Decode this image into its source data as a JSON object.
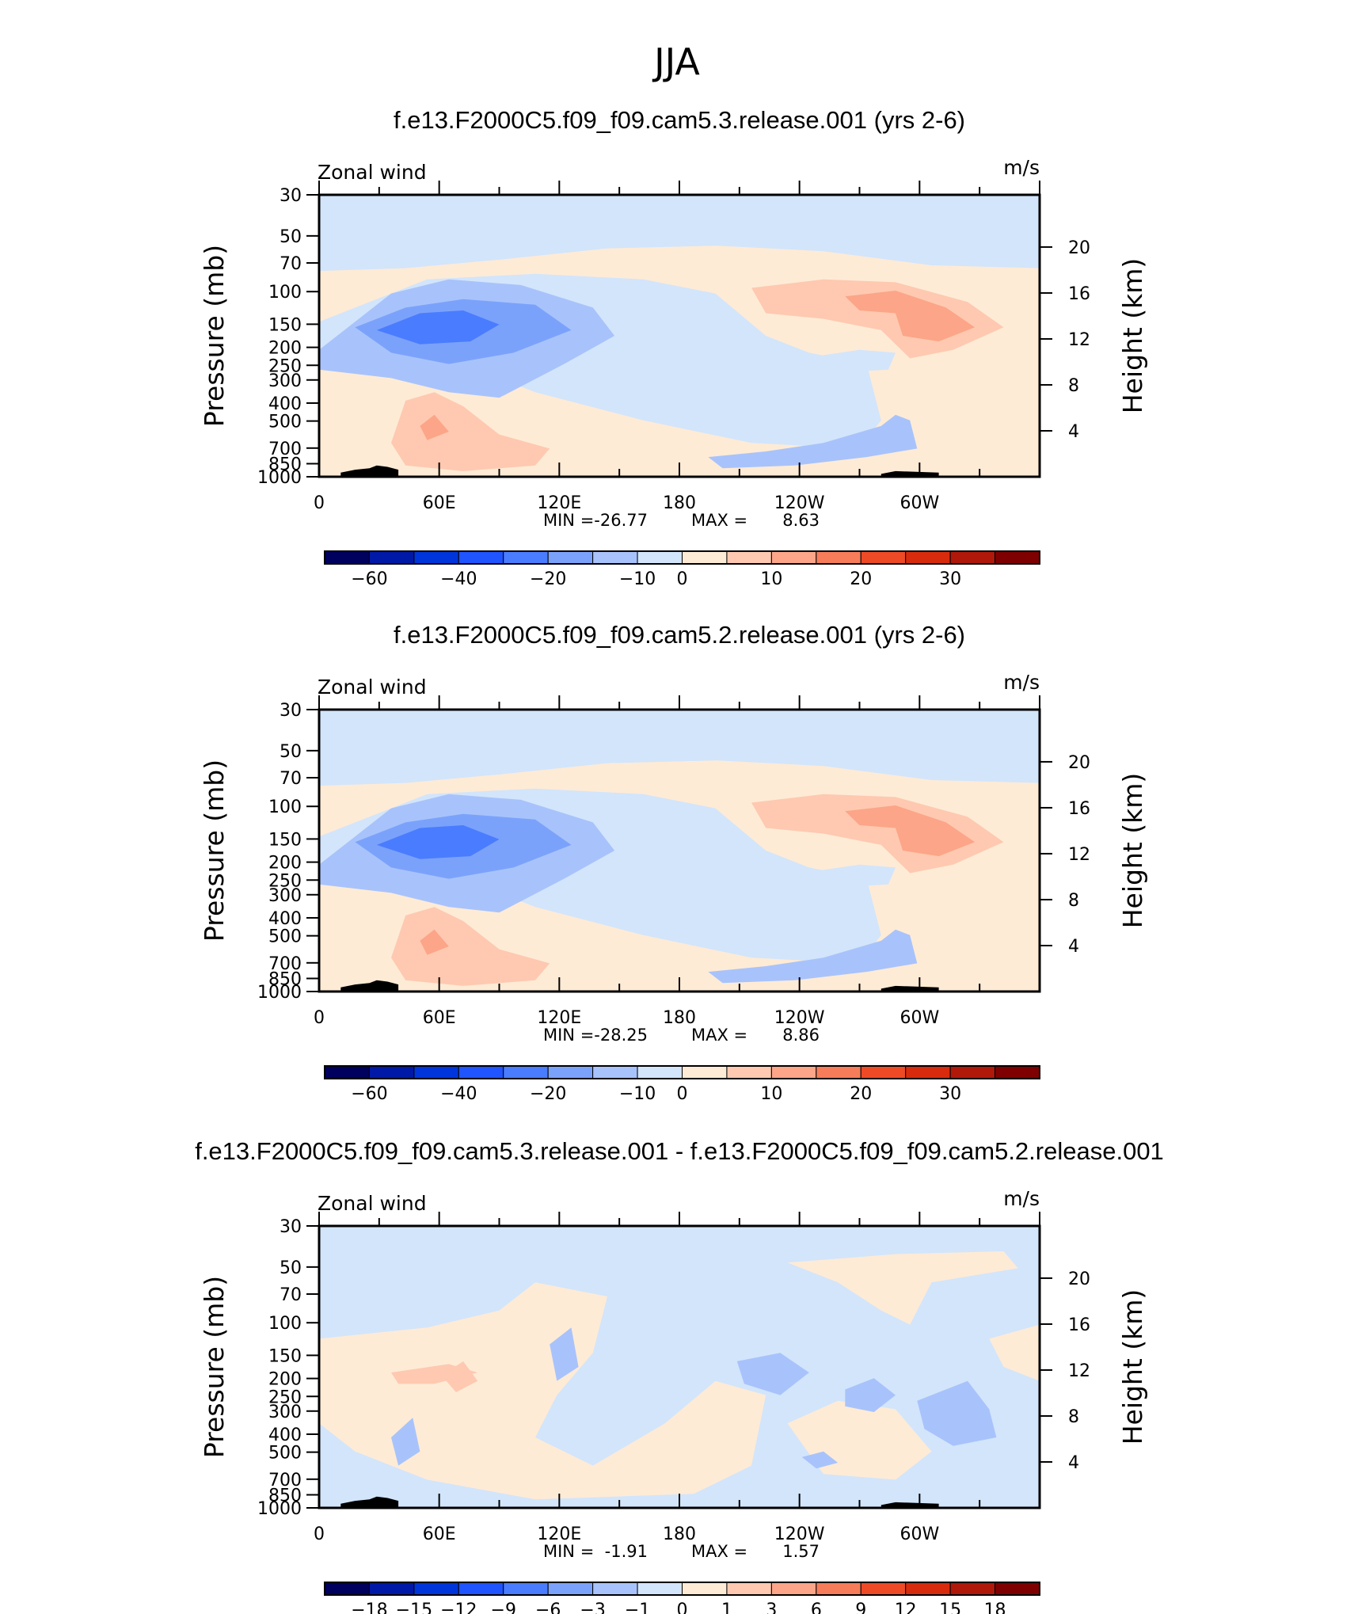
{
  "suptitle": "JJA",
  "colors": {
    "full": [
      "#00005e",
      "#0019a6",
      "#0035db",
      "#1f54ff",
      "#4a7cff",
      "#7ba2fb",
      "#a8c3fb",
      "#d2e5fb",
      "#feebd6",
      "#fec9b0",
      "#fca588",
      "#f77c59",
      "#ee4a26",
      "#d82b0d",
      "#b0180a",
      "#7f0000"
    ],
    "diff": [
      "#00005e",
      "#0019a6",
      "#0035db",
      "#1f54ff",
      "#4a7cff",
      "#7ba2fb",
      "#a8c3fb",
      "#d2e5fb",
      "#feebd6",
      "#fec9b0",
      "#fca588",
      "#f77c59",
      "#ee4a26",
      "#d82b0d",
      "#b0180a",
      "#7f0000"
    ],
    "terrain": "#000000"
  },
  "chart_data": [
    {
      "type": "heatmap",
      "title": "f.e13.F2000C5.f09_f09.cam5.3.release.001 (yrs 2-6)",
      "left_label": "Zonal wind",
      "right_label": "m/s",
      "ylabel": "Pressure (mb)",
      "ylabel_right": "Height (km)",
      "pressure_ticks": [
        "30",
        "50",
        "70",
        "100",
        "150",
        "200",
        "250",
        "300",
        "400",
        "500",
        "700",
        "850",
        "1000"
      ],
      "height_ticks": [
        "20",
        "16",
        "12",
        "8",
        "4"
      ],
      "lon_ticks": [
        "0",
        "60E",
        "120E",
        "180",
        "120W",
        "60W"
      ],
      "stat_min_label": "MIN =",
      "stat_min": "-26.77",
      "stat_max_label": "MAX =",
      "stat_max": "8.63",
      "colorbar_labels": [
        "−60",
        "−40",
        "−20",
        "−10",
        "0",
        "10",
        "20",
        "30"
      ]
    },
    {
      "type": "heatmap",
      "title": "f.e13.F2000C5.f09_f09.cam5.2.release.001 (yrs 2-6)",
      "left_label": "Zonal wind",
      "right_label": "m/s",
      "ylabel": "Pressure (mb)",
      "ylabel_right": "Height (km)",
      "pressure_ticks": [
        "30",
        "50",
        "70",
        "100",
        "150",
        "200",
        "250",
        "300",
        "400",
        "500",
        "700",
        "850",
        "1000"
      ],
      "height_ticks": [
        "20",
        "16",
        "12",
        "8",
        "4"
      ],
      "lon_ticks": [
        "0",
        "60E",
        "120E",
        "180",
        "120W",
        "60W"
      ],
      "stat_min_label": "MIN =",
      "stat_min": "-28.25",
      "stat_max_label": "MAX =",
      "stat_max": "8.86",
      "colorbar_labels": [
        "−60",
        "−40",
        "−20",
        "−10",
        "0",
        "10",
        "20",
        "30"
      ]
    },
    {
      "type": "heatmap",
      "title": "f.e13.F2000C5.f09_f09.cam5.3.release.001 - f.e13.F2000C5.f09_f09.cam5.2.release.001",
      "left_label": "Zonal wind",
      "right_label": "m/s",
      "ylabel": "Pressure (mb)",
      "ylabel_right": "Height (km)",
      "pressure_ticks": [
        "30",
        "50",
        "70",
        "100",
        "150",
        "200",
        "250",
        "300",
        "400",
        "500",
        "700",
        "850",
        "1000"
      ],
      "height_ticks": [
        "20",
        "16",
        "12",
        "8",
        "4"
      ],
      "lon_ticks": [
        "0",
        "60E",
        "120E",
        "180",
        "120W",
        "60W"
      ],
      "stat_min_label": "MIN =",
      "stat_min": "-1.91",
      "stat_max_label": "MAX =",
      "stat_max": "1.57",
      "colorbar_labels": [
        "−18",
        "−15",
        "−12",
        "−9",
        "−6",
        "−3",
        "−1",
        "0",
        "1",
        "3",
        "6",
        "9",
        "12",
        "15",
        "18"
      ]
    }
  ]
}
